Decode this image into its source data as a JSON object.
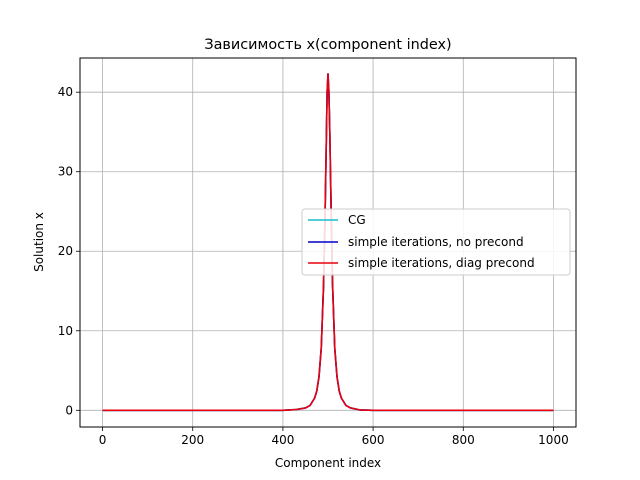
{
  "chart_data": {
    "type": "line",
    "title": "Зависимость x(component index)",
    "xlabel": "Component index",
    "ylabel": "Solution x",
    "xlim": [
      -50,
      1050
    ],
    "ylim": [
      -2.1,
      44.3
    ],
    "xticks": [
      0,
      200,
      400,
      600,
      800,
      1000
    ],
    "yticks": [
      0,
      10,
      20,
      30,
      40
    ],
    "xtick_labels": [
      "0",
      "200",
      "400",
      "600",
      "800",
      "1000"
    ],
    "ytick_labels": [
      "0",
      "10",
      "20",
      "30",
      "40"
    ],
    "grid": true,
    "legend_position": "center-right",
    "x": [
      0,
      100,
      200,
      300,
      400,
      430,
      450,
      460,
      470,
      475,
      480,
      485,
      490,
      493,
      496,
      498,
      500,
      502,
      504,
      507,
      510,
      515,
      520,
      525,
      530,
      540,
      550,
      570,
      600,
      700,
      800,
      900,
      1000
    ],
    "series": [
      {
        "name": "CG",
        "color": "#17becf",
        "values": [
          0,
          0,
          0,
          0,
          0,
          0.1,
          0.3,
          0.6,
          1.5,
          2.4,
          4.2,
          7.8,
          15.5,
          23.0,
          33.0,
          40.0,
          42.3,
          40.0,
          35.0,
          25.0,
          16.0,
          7.8,
          4.2,
          2.4,
          1.5,
          0.6,
          0.3,
          0.05,
          0,
          0,
          0,
          0,
          0
        ]
      },
      {
        "name": "simple iterations, no precond",
        "color": "#0000cc",
        "values": [
          0,
          0,
          0,
          0,
          0,
          0.1,
          0.3,
          0.6,
          1.5,
          2.4,
          4.2,
          7.8,
          15.5,
          23.0,
          33.0,
          40.0,
          42.3,
          40.0,
          35.0,
          25.0,
          16.0,
          7.8,
          4.2,
          2.4,
          1.5,
          0.6,
          0.3,
          0.05,
          0,
          0,
          0,
          0,
          0
        ]
      },
      {
        "name": "simple iterations, diag precond",
        "color": "#e8000b",
        "values": [
          0,
          0,
          0,
          0,
          0,
          0.1,
          0.3,
          0.6,
          1.5,
          2.4,
          4.2,
          7.8,
          15.5,
          23.0,
          33.0,
          40.0,
          42.3,
          40.0,
          35.0,
          25.0,
          16.0,
          7.8,
          4.2,
          2.4,
          1.5,
          0.6,
          0.3,
          0.05,
          0,
          0,
          0,
          0,
          0
        ]
      }
    ]
  }
}
